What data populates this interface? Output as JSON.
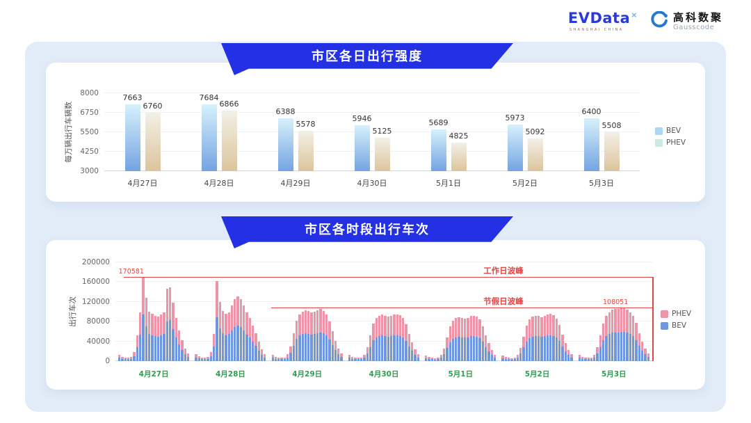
{
  "header": {
    "evdata_text": "EVData",
    "evdata_sup": "×",
    "evdata_sub": "SHANGHAI CHINA",
    "gausscode_cn": "高科数聚",
    "gausscode_en": "Gausscode"
  },
  "panels": [
    {
      "title": "市区各日出行强度"
    },
    {
      "title": "市区各时段出行车次"
    }
  ],
  "chart_data": [
    {
      "type": "bar",
      "title": "市区各日出行强度",
      "categories": [
        "4月27日",
        "4月28日",
        "4月29日",
        "4月30日",
        "5月1日",
        "5月2日",
        "5月3日"
      ],
      "series": [
        {
          "name": "BEV",
          "values": [
            7663,
            7684,
            6388,
            5946,
            5689,
            5973,
            6400
          ]
        },
        {
          "name": "PHEV",
          "values": [
            6760,
            6866,
            5578,
            5125,
            4825,
            5092,
            5508
          ]
        }
      ],
      "ylabel": "每万辆出行车辆数",
      "yticks": [
        3000,
        4250,
        5500,
        6750,
        8000
      ],
      "ylim": [
        3000,
        8000
      ],
      "legend": [
        "BEV",
        "PHEV"
      ],
      "legend_position": "right",
      "grid": true,
      "colors": {
        "BEV": {
          "top": "#d6f1fb",
          "bottom": "#74a3e2",
          "legend": "#a9d9f3"
        },
        "PHEV": {
          "top": "#f2f0e6",
          "bottom": "#dcc49c",
          "legend": "#cde9e0"
        }
      }
    },
    {
      "type": "bar",
      "stacked": true,
      "title": "市区各时段出行车次",
      "categories": [
        "4月27日",
        "4月28日",
        "4月29日",
        "4月30日",
        "5月1日",
        "5月2日",
        "5月3日"
      ],
      "series_names": [
        "PHEV",
        "BEV"
      ],
      "bev_share": 0.55,
      "hourly_totals_by_day": [
        [
          13000,
          9000,
          7000,
          6500,
          8000,
          18000,
          52000,
          98000,
          170581,
          128000,
          100000,
          96000,
          92000,
          90000,
          94000,
          99000,
          146000,
          150000,
          118000,
          88000,
          62000,
          42000,
          26000,
          15000
        ],
        [
          14000,
          9500,
          7500,
          7000,
          8500,
          19000,
          55000,
          162000,
          120000,
          102000,
          96000,
          99000,
          112000,
          125000,
          131000,
          126000,
          112000,
          98000,
          88000,
          72000,
          56000,
          39000,
          24000,
          14000
        ],
        [
          12000,
          8500,
          7000,
          6500,
          7500,
          14000,
          30000,
          56000,
          82000,
          95000,
          100000,
          103000,
          101000,
          98000,
          100000,
          103000,
          105000,
          102000,
          95000,
          80000,
          60000,
          41000,
          26000,
          15000
        ],
        [
          12000,
          8500,
          7000,
          6500,
          7500,
          13000,
          28000,
          52000,
          76000,
          88000,
          92000,
          94000,
          92000,
          90000,
          92000,
          94000,
          95000,
          93000,
          87000,
          74000,
          55000,
          38000,
          24000,
          14000
        ],
        [
          11000,
          8000,
          6500,
          6000,
          7000,
          12000,
          26000,
          48000,
          70000,
          82000,
          87000,
          89000,
          88000,
          86000,
          88000,
          91000,
          92000,
          90000,
          84000,
          71000,
          52000,
          36000,
          22000,
          13000
        ],
        [
          11000,
          8000,
          6500,
          6000,
          7000,
          12500,
          27000,
          50000,
          72000,
          85000,
          90000,
          92000,
          91000,
          89000,
          91000,
          94000,
          96000,
          93000,
          86000,
          73000,
          54000,
          37000,
          23000,
          13500
        ],
        [
          12000,
          8500,
          7000,
          6500,
          7500,
          13000,
          28000,
          52000,
          76000,
          92000,
          99000,
          104000,
          106000,
          105000,
          107000,
          108051,
          104000,
          99000,
          91000,
          77000,
          57000,
          39000,
          25000,
          15000
        ]
      ],
      "ylabel": "出行车次",
      "yticks": [
        0,
        40000,
        80000,
        120000,
        160000,
        200000
      ],
      "ylim": [
        0,
        200000
      ],
      "annotations": [
        {
          "label": "工作日波峰",
          "value": 170581,
          "value_label": "170581"
        },
        {
          "label": "节假日波峰",
          "value": 108051,
          "value_label": "108051"
        }
      ],
      "legend": [
        "PHEV",
        "BEV"
      ],
      "legend_position": "right",
      "colors": {
        "PHEV": "#ee94a8",
        "BEV": "#7096dd",
        "annotation": "#e24545",
        "date_label": "#2f9e4e"
      }
    }
  ]
}
